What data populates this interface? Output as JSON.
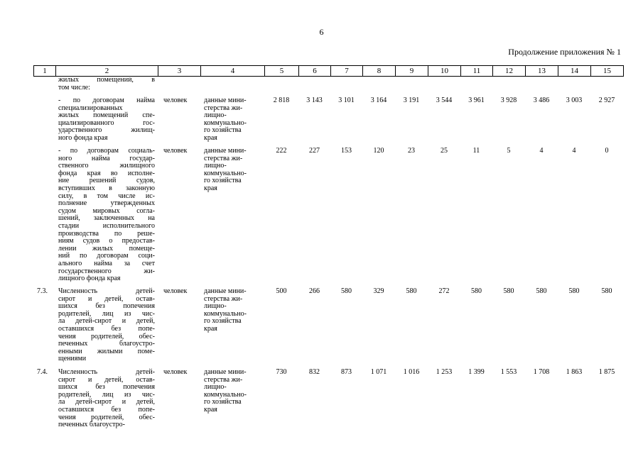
{
  "page_number": "6",
  "caption": "Продолжение приложения № 1",
  "table": {
    "header": [
      "1",
      "2",
      "3",
      "4",
      "5",
      "6",
      "7",
      "8",
      "9",
      "10",
      "11",
      "12",
      "13",
      "14",
      "15"
    ],
    "rows": [
      {
        "description": [
          "жилых помещений, в",
          "том числе:"
        ]
      },
      {
        "description": [
          "- по договорам найма",
          "специализированных",
          "жилых помещений спе-",
          "циализированного гос-",
          "ударственного жилищ-",
          "ного фонда края"
        ],
        "unit": "человек",
        "source": [
          "данные мини-",
          "стерства жи-",
          "лищно-",
          "коммунально-",
          "го хозяйства",
          "края"
        ],
        "values": [
          "2 818",
          "3 143",
          "3 101",
          "3 164",
          "3 191",
          "3 544",
          "3 961",
          "3 928",
          "3 486",
          "3 003",
          "2 927"
        ]
      },
      {
        "description": [
          "- по договорам социаль-",
          "ного найма государ-",
          "ственного жилищного",
          "фонда края во исполне-",
          "ние решений судов,",
          "вступивших в законную",
          "силу, в том числе ис-",
          "полнение утвержденных",
          "судом мировых согла-",
          "шений, заключенных на",
          "стадии исполнительного",
          "производства по реше-",
          "ниям судов о предостав-",
          "лении жилых помеще-",
          "ний по договорам соци-",
          "ального найма за счет",
          "государственного жи-",
          "лищного фонда края"
        ],
        "unit": "человек",
        "source": [
          "данные мини-",
          "стерства жи-",
          "лищно-",
          "коммунально-",
          "го хозяйства",
          "края"
        ],
        "values": [
          "222",
          "227",
          "153",
          "120",
          "23",
          "25",
          "11",
          "5",
          "4",
          "4",
          "0"
        ]
      },
      {
        "number": "7.3.",
        "description": [
          "Численность детей-",
          "сирот и детей, остав-",
          "шихся без попечения",
          "родителей, лиц из чис-",
          "ла детей-сирот и детей,",
          "оставшихся без попе-",
          "чения родителей, обес-",
          "печенных благоустро-",
          "енными жилыми поме-",
          "щениями"
        ],
        "unit": "человек",
        "source": [
          "данные мини-",
          "стерства жи-",
          "лищно-",
          "коммунально-",
          "го хозяйства",
          "края"
        ],
        "values": [
          "500",
          "266",
          "580",
          "329",
          "580",
          "272",
          "580",
          "580",
          "580",
          "580",
          "580"
        ]
      },
      {
        "number": "7.4.",
        "description": [
          "Численность детей-",
          "сирот и детей, остав-",
          "шихся без попечения",
          "родителей, лиц из чис-",
          "ла детей-сирот и детей,",
          "оставшихся без попе-",
          "чения родителей, обес-",
          "печенных благоустро-"
        ],
        "unit": "человек",
        "source": [
          "данные мини-",
          "стерства жи-",
          "лищно-",
          "коммунально-",
          "го хозяйства",
          "края"
        ],
        "values": [
          "730",
          "832",
          "873",
          "1 071",
          "1 016",
          "1 253",
          "1 399",
          "1 553",
          "1 708",
          "1 863",
          "1 875"
        ]
      }
    ]
  }
}
